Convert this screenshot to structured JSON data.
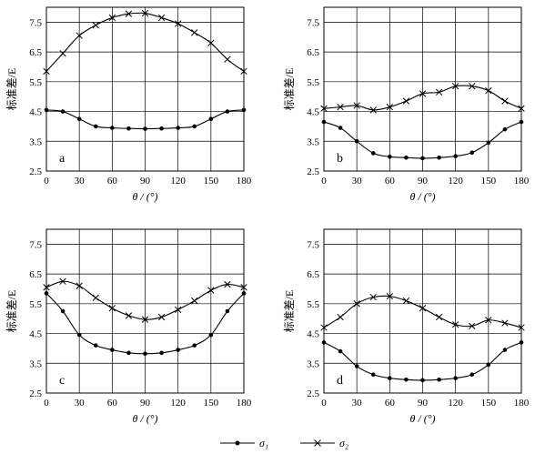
{
  "legend": [
    {
      "name": "σ₁",
      "marker": "dot"
    },
    {
      "name": "σ₂",
      "marker": "cross"
    }
  ],
  "chart_data": [
    {
      "type": "line",
      "panel_label": "a",
      "xlabel": "θ / (°)",
      "ylabel": "标准差/E",
      "xlim": [
        0,
        180
      ],
      "ylim": [
        2.5,
        8.0
      ],
      "xticks": [
        0,
        30,
        60,
        90,
        120,
        150,
        180
      ],
      "yticks": [
        2.5,
        3.5,
        4.5,
        5.5,
        6.5,
        7.5
      ],
      "grid": true,
      "x": [
        0,
        15,
        30,
        45,
        60,
        75,
        90,
        105,
        120,
        135,
        150,
        165,
        180
      ],
      "series": [
        {
          "name": "σ₁",
          "marker": "dot",
          "values": [
            4.55,
            4.5,
            4.25,
            4.0,
            3.95,
            3.93,
            3.92,
            3.93,
            3.95,
            4.0,
            4.25,
            4.5,
            4.55
          ]
        },
        {
          "name": "σ₂",
          "marker": "cross",
          "values": [
            5.85,
            6.45,
            7.05,
            7.4,
            7.65,
            7.78,
            7.8,
            7.65,
            7.45,
            7.15,
            6.8,
            6.25,
            5.85
          ]
        }
      ]
    },
    {
      "type": "line",
      "panel_label": "b",
      "xlabel": "θ / (°)",
      "ylabel": "标准差/E",
      "xlim": [
        0,
        180
      ],
      "ylim": [
        2.5,
        8.0
      ],
      "xticks": [
        0,
        30,
        60,
        90,
        120,
        150,
        180
      ],
      "yticks": [
        2.5,
        3.5,
        4.5,
        5.5,
        6.5,
        7.5
      ],
      "grid": true,
      "x": [
        0,
        15,
        30,
        45,
        60,
        75,
        90,
        105,
        120,
        135,
        150,
        165,
        180
      ],
      "series": [
        {
          "name": "σ₁",
          "marker": "dot",
          "values": [
            4.15,
            3.95,
            3.5,
            3.1,
            2.98,
            2.95,
            2.93,
            2.95,
            3.0,
            3.12,
            3.45,
            3.9,
            4.15
          ]
        },
        {
          "name": "σ₂",
          "marker": "cross",
          "values": [
            4.6,
            4.65,
            4.7,
            4.55,
            4.65,
            4.85,
            5.1,
            5.15,
            5.35,
            5.35,
            5.2,
            4.85,
            4.6
          ]
        }
      ]
    },
    {
      "type": "line",
      "panel_label": "c",
      "xlabel": "θ / (°)",
      "ylabel": "标准差/E",
      "xlim": [
        0,
        180
      ],
      "ylim": [
        2.5,
        8.0
      ],
      "xticks": [
        0,
        30,
        60,
        90,
        120,
        150,
        180
      ],
      "yticks": [
        2.5,
        3.5,
        4.5,
        5.5,
        6.5,
        7.5
      ],
      "grid": true,
      "x": [
        0,
        15,
        30,
        45,
        60,
        75,
        90,
        105,
        120,
        135,
        150,
        165,
        180
      ],
      "series": [
        {
          "name": "σ₁",
          "marker": "dot",
          "values": [
            5.85,
            5.25,
            4.45,
            4.1,
            3.95,
            3.85,
            3.82,
            3.85,
            3.95,
            4.1,
            4.45,
            5.25,
            5.85
          ]
        },
        {
          "name": "σ₂",
          "marker": "cross",
          "values": [
            6.05,
            6.25,
            6.1,
            5.7,
            5.35,
            5.1,
            4.97,
            5.05,
            5.3,
            5.6,
            5.95,
            6.15,
            6.05
          ]
        }
      ]
    },
    {
      "type": "line",
      "panel_label": "d",
      "xlabel": "θ / (°)",
      "ylabel": "标准差/E",
      "xlim": [
        0,
        180
      ],
      "ylim": [
        2.5,
        8.0
      ],
      "xticks": [
        0,
        30,
        60,
        90,
        120,
        150,
        180
      ],
      "yticks": [
        2.5,
        3.5,
        4.5,
        5.5,
        6.5,
        7.5
      ],
      "grid": true,
      "x": [
        0,
        15,
        30,
        45,
        60,
        75,
        90,
        105,
        120,
        135,
        150,
        165,
        180
      ],
      "series": [
        {
          "name": "σ₁",
          "marker": "dot",
          "values": [
            4.2,
            3.9,
            3.4,
            3.12,
            3.0,
            2.95,
            2.93,
            2.95,
            3.0,
            3.12,
            3.45,
            3.95,
            4.2
          ]
        },
        {
          "name": "σ₂",
          "marker": "cross",
          "values": [
            4.7,
            5.05,
            5.5,
            5.72,
            5.75,
            5.6,
            5.35,
            5.05,
            4.8,
            4.75,
            4.95,
            4.85,
            4.7
          ]
        }
      ]
    }
  ]
}
